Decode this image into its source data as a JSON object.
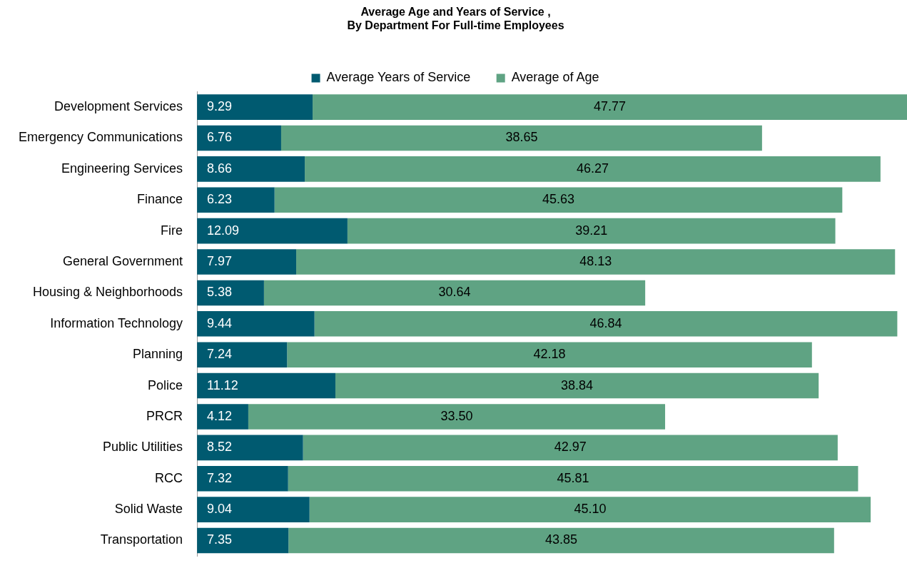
{
  "chart_data": {
    "type": "bar",
    "orientation": "horizontal",
    "stacked": true,
    "title": "Average Age and Years of Service ,\nBy Department For Full-time Employees",
    "categories": [
      "Development Services",
      "Emergency Communications",
      "Engineering Services",
      "Finance",
      "Fire",
      "General Government",
      "Housing & Neighborhoods",
      "Information Technology",
      "Planning",
      "Police",
      "PRCR",
      "Public Utilities",
      "RCC",
      "Solid Waste",
      "Transportation"
    ],
    "series": [
      {
        "name": "Average Years of Service",
        "color": "#005a70",
        "values": [
          9.29,
          6.76,
          8.66,
          6.23,
          12.09,
          7.97,
          5.38,
          9.44,
          7.24,
          11.12,
          4.12,
          8.52,
          7.32,
          9.04,
          7.35
        ],
        "value_labels": [
          "9.29",
          "6.76",
          "8.66",
          "6.23",
          "12.09",
          "7.97",
          "5.38",
          "9.44",
          "7.24",
          "11.12",
          "4.12",
          "8.52",
          "7.32",
          "9.04",
          "7.35"
        ]
      },
      {
        "name": "Average of Age",
        "color": "#5fa383",
        "values": [
          47.77,
          38.65,
          46.27,
          45.63,
          39.21,
          48.13,
          30.64,
          46.84,
          42.18,
          38.84,
          33.5,
          42.97,
          45.81,
          45.1,
          43.85
        ],
        "value_labels": [
          "47.77",
          "38.65",
          "46.27",
          "45.63",
          "39.21",
          "48.13",
          "30.64",
          "46.84",
          "42.18",
          "38.84",
          "33.50",
          "42.97",
          "45.81",
          "45.10",
          "43.85"
        ]
      }
    ],
    "legend": "top",
    "tick_labels": "y"
  }
}
